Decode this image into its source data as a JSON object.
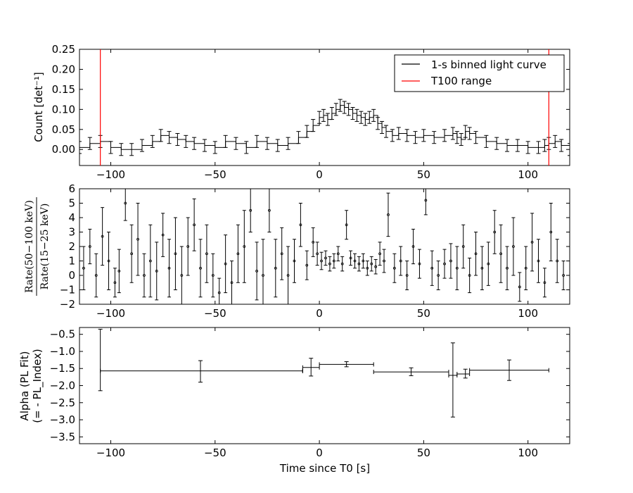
{
  "chart_data": [
    {
      "type": "line",
      "panel": "light-curve",
      "ylabel": "Count [det⁻¹]",
      "xlim": [
        -115,
        120
      ],
      "ylim": [
        -0.04,
        0.25
      ],
      "xticks": [
        -100,
        -50,
        0,
        50,
        100
      ],
      "xtick_labels": [
        "−100",
        "−50",
        "0",
        "50",
        "100"
      ],
      "yticks": [
        0.0,
        0.05,
        0.1,
        0.15,
        0.2,
        0.25
      ],
      "ytick_labels": [
        "0.00",
        "0.05",
        "0.10",
        "0.15",
        "0.20",
        "0.25"
      ],
      "legend": {
        "position": "top-right",
        "entries": [
          {
            "label": "1-s binned light curve",
            "color": "#000000"
          },
          {
            "label": "T100 range",
            "color": "#ff0000"
          }
        ]
      },
      "vlines": {
        "name": "T100 range",
        "x": [
          -105,
          110
        ],
        "color": "#ff0000"
      },
      "series": [
        {
          "name": "1-s binned light curve",
          "color": "#000000",
          "error": 0.015,
          "x": [
            -115,
            -110,
            -105,
            -100,
            -95,
            -90,
            -85,
            -80,
            -76,
            -72,
            -68,
            -64,
            -60,
            -55,
            -50,
            -45,
            -40,
            -35,
            -30,
            -25,
            -20,
            -15,
            -10,
            -6,
            -3,
            0,
            2,
            4,
            6,
            8,
            10,
            12,
            14,
            16,
            18,
            20,
            22,
            24,
            26,
            28,
            30,
            32,
            35,
            38,
            42,
            46,
            50,
            55,
            60,
            64,
            66,
            68,
            70,
            72,
            75,
            80,
            85,
            90,
            95,
            100,
            105,
            108,
            110,
            113,
            116,
            120
          ],
          "y": [
            0.005,
            0.015,
            0.02,
            0.005,
            0.0,
            0.0,
            0.01,
            0.02,
            0.035,
            0.03,
            0.025,
            0.02,
            0.015,
            0.01,
            0.005,
            0.02,
            0.015,
            0.005,
            0.02,
            0.015,
            0.01,
            0.015,
            0.03,
            0.045,
            0.06,
            0.08,
            0.085,
            0.075,
            0.09,
            0.1,
            0.11,
            0.105,
            0.1,
            0.09,
            0.085,
            0.08,
            0.075,
            0.08,
            0.085,
            0.065,
            0.055,
            0.045,
            0.035,
            0.04,
            0.035,
            0.03,
            0.035,
            0.03,
            0.035,
            0.04,
            0.03,
            0.025,
            0.045,
            0.04,
            0.03,
            0.02,
            0.015,
            0.01,
            0.01,
            0.005,
            0.005,
            0.01,
            0.015,
            0.02,
            0.01,
            0.0
          ]
        }
      ]
    },
    {
      "type": "scatter",
      "panel": "hardness-ratio",
      "ylabel_numerator": "Rate(50−100 keV)",
      "ylabel_denominator": "Rate(15−25 keV)",
      "xlim": [
        -115,
        120
      ],
      "ylim": [
        -2,
        6
      ],
      "xticks": [
        -100,
        -50,
        0,
        50,
        100
      ],
      "xtick_labels": [
        "−100",
        "−50",
        "0",
        "50",
        "100"
      ],
      "yticks": [
        -2,
        -1,
        0,
        1,
        2,
        3,
        4,
        5,
        6
      ],
      "ytick_labels": [
        "−2",
        "−1",
        "0",
        "1",
        "2",
        "3",
        "4",
        "5",
        "6"
      ],
      "series": [
        {
          "name": "",
          "color": "#000000",
          "x": [
            -113,
            -110,
            -107,
            -104,
            -101,
            -98,
            -96,
            -93,
            -90,
            -87,
            -84,
            -81,
            -78,
            -75,
            -72,
            -69,
            -66,
            -63,
            -60,
            -57,
            -54,
            -51,
            -48,
            -45,
            -42,
            -39,
            -36,
            -33,
            -30,
            -27,
            -24,
            -21,
            -18,
            -15,
            -12,
            -9,
            -6,
            -3,
            -1,
            1,
            3,
            5,
            7,
            9,
            11,
            13,
            15,
            17,
            19,
            21,
            23,
            25,
            27,
            29,
            31,
            33,
            36,
            39,
            42,
            45,
            48,
            51,
            54,
            57,
            60,
            63,
            66,
            69,
            72,
            75,
            78,
            81,
            84,
            87,
            90,
            93,
            96,
            99,
            102,
            105,
            108,
            111,
            114,
            117
          ],
          "y": [
            0.5,
            2.0,
            0.0,
            2.7,
            1.0,
            -0.5,
            0.3,
            5.0,
            1.5,
            2.5,
            0.0,
            1.0,
            0.3,
            2.8,
            0.5,
            1.5,
            0.0,
            2.0,
            3.5,
            0.5,
            1.5,
            0.0,
            -1.2,
            0.8,
            -0.5,
            1.5,
            2.0,
            4.5,
            0.3,
            0.0,
            4.5,
            0.5,
            1.5,
            0.0,
            1.0,
            3.5,
            0.7,
            2.3,
            1.5,
            1.0,
            1.2,
            0.8,
            1.0,
            1.5,
            0.8,
            3.5,
            1.2,
            1.0,
            0.8,
            1.0,
            0.5,
            0.8,
            0.6,
            1.5,
            1.0,
            4.2,
            0.5,
            1.0,
            0.0,
            2.0,
            0.8,
            5.2,
            0.5,
            0.0,
            0.8,
            1.0,
            0.5,
            2.0,
            0.0,
            1.5,
            0.5,
            0.8,
            3.0,
            1.5,
            0.5,
            2.0,
            -0.8,
            0.5,
            2.3,
            1.0,
            -0.5,
            3.0,
            1.0,
            0.0
          ],
          "yerr": [
            1.5,
            1.2,
            1.5,
            2.0,
            2.0,
            1.0,
            1.5,
            1.2,
            2.0,
            2.5,
            1.5,
            2.5,
            2.0,
            1.5,
            2.0,
            2.5,
            2.0,
            2.0,
            1.8,
            2.0,
            2.0,
            1.5,
            1.0,
            2.0,
            1.5,
            2.0,
            2.5,
            1.5,
            2.0,
            2.5,
            1.5,
            2.0,
            1.8,
            2.0,
            1.5,
            1.5,
            1.0,
            1.0,
            0.8,
            0.6,
            0.5,
            0.5,
            0.5,
            0.5,
            0.5,
            1.0,
            0.5,
            0.5,
            0.5,
            0.5,
            0.5,
            0.5,
            0.5,
            0.8,
            0.8,
            1.5,
            1.0,
            1.0,
            1.0,
            1.2,
            1.0,
            1.0,
            1.2,
            1.0,
            1.0,
            1.2,
            1.5,
            1.5,
            1.2,
            1.5,
            1.5,
            1.5,
            1.5,
            2.0,
            1.5,
            2.0,
            1.0,
            1.5,
            2.0,
            1.5,
            1.0,
            2.0,
            1.5,
            1.0
          ]
        }
      ]
    },
    {
      "type": "scatter",
      "panel": "spectral-index",
      "title": "",
      "xlabel": "Time since T0 [s]",
      "ylabel_line1": "Alpha (PL Fit)",
      "ylabel_line2": "(= - PL_Index)",
      "xlim": [
        -115,
        120
      ],
      "ylim": [
        -3.7,
        -0.3
      ],
      "xticks": [
        -100,
        -50,
        0,
        50,
        100
      ],
      "xtick_labels": [
        "−100",
        "−50",
        "0",
        "50",
        "100"
      ],
      "yticks": [
        -3.5,
        -3.0,
        -2.5,
        -2.0,
        -1.5,
        -1.0,
        -0.5
      ],
      "ytick_labels": [
        "−3.5",
        "−3.0",
        "−2.5",
        "−2.0",
        "−1.5",
        "−1.0",
        "−0.5"
      ],
      "series": [
        {
          "name": "",
          "color": "#000000",
          "x": [
            -105,
            -57,
            -4,
            13,
            44,
            64,
            70,
            91
          ],
          "x_low": [
            -105,
            -8,
            -8,
            0,
            26,
            62,
            66,
            72
          ],
          "x_high": [
            -8,
            -8,
            0,
            26,
            62,
            66,
            72,
            110
          ],
          "y": [
            -1.57,
            -1.57,
            -1.47,
            -1.38,
            -1.6,
            -1.7,
            -1.66,
            -1.55
          ],
          "y_low": [
            -2.15,
            -1.9,
            -1.72,
            -1.45,
            -1.71,
            -2.92,
            -1.78,
            -1.85
          ],
          "y_high": [
            -0.35,
            -1.27,
            -1.2,
            -1.3,
            -1.48,
            -0.75,
            -1.52,
            -1.25
          ]
        }
      ]
    }
  ]
}
